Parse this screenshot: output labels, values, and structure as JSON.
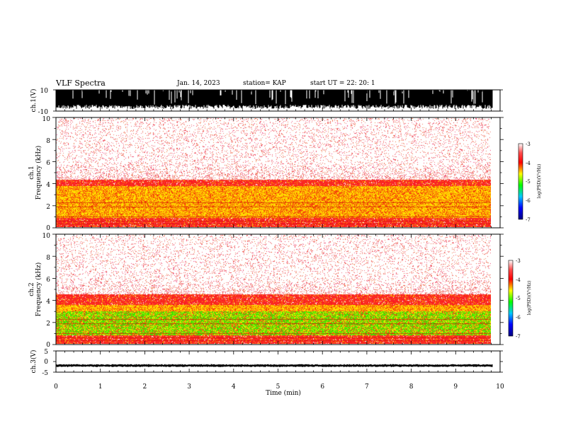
{
  "header": {
    "title": "VLF Spectra",
    "date": "Jan. 14, 2023",
    "station": "station= KAP",
    "start_ut": "start  UT =   22: 20: 1"
  },
  "colors": {
    "red": "#ff2020",
    "yellow": "#ffd700",
    "green": "#22e000",
    "colorbar": [
      "#000080",
      "#0000ff",
      "#00ffff",
      "#00ff00",
      "#ffff00",
      "#ff0000",
      "#ffffff"
    ]
  },
  "chart_data": [
    {
      "type": "line",
      "panel": "ch1-waveform",
      "ylabel": "ch.1(V)",
      "ylim": [
        -10,
        10
      ],
      "ytick_labels": [
        "10",
        "-10"
      ],
      "xlim": [
        0,
        10
      ],
      "description_of_values": "dense oscillating waveform filling roughly -6 to 10 V"
    },
    {
      "type": "heatmap",
      "panel": "ch1-spectrogram",
      "ylabel_line1": "ch.1",
      "ylabel_line2": "Frequency  (kHz)",
      "ylim": [
        0,
        10
      ],
      "ytick_labels": [
        "0",
        "2",
        "4",
        "6",
        "8",
        "10"
      ],
      "xlim": [
        0,
        10.0
      ],
      "data_end_min": 9.83,
      "bands": [
        {
          "from_khz": 0.0,
          "to_khz": 0.9,
          "level": "red"
        },
        {
          "from_khz": 0.9,
          "to_khz": 3.8,
          "level": "yellow"
        },
        {
          "from_khz": 3.8,
          "to_khz": 4.4,
          "level": "red"
        },
        {
          "from_khz": 4.4,
          "to_khz": 10.0,
          "level": "faint-red"
        }
      ],
      "colorbar": {
        "label": "log(PSD)(V²/Hz)",
        "range": [
          -7,
          -3
        ],
        "tick_labels": [
          "-3",
          "-4",
          "-5",
          "-6",
          "-7"
        ]
      }
    },
    {
      "type": "heatmap",
      "panel": "ch2-spectrogram",
      "ylabel_line1": "ch.2",
      "ylabel_line2": "Frequency  (kHz)",
      "ylim": [
        0,
        10
      ],
      "ytick_labels": [
        "0",
        "2",
        "4",
        "6",
        "8",
        "10"
      ],
      "xlim": [
        0,
        10.0
      ],
      "data_end_min": 9.83,
      "bands": [
        {
          "from_khz": 0.0,
          "to_khz": 0.8,
          "level": "red"
        },
        {
          "from_khz": 0.8,
          "to_khz": 3.0,
          "level": "green"
        },
        {
          "from_khz": 3.0,
          "to_khz": 3.6,
          "level": "yellow"
        },
        {
          "from_khz": 3.6,
          "to_khz": 4.6,
          "level": "red"
        },
        {
          "from_khz": 4.6,
          "to_khz": 10.0,
          "level": "faint-red"
        }
      ],
      "colorbar": {
        "label": "log(PSD)(V²/Hz)",
        "range": [
          -7,
          -3
        ],
        "tick_labels": [
          "-3",
          "-4",
          "-5",
          "-6",
          "-7"
        ]
      }
    },
    {
      "type": "line",
      "panel": "ch3-waveform",
      "ylabel": "ch.3(V)",
      "ylim": [
        -5,
        5
      ],
      "ytick_labels": [
        "5",
        "0",
        "-5"
      ],
      "xlim": [
        0,
        10
      ],
      "xlabel": "Time  (min)",
      "xtick_labels": [
        "0",
        "1",
        "2",
        "3",
        "4",
        "5",
        "6",
        "7",
        "8",
        "9",
        "10"
      ],
      "description_of_values": "narrow band signal near -2 V"
    }
  ]
}
